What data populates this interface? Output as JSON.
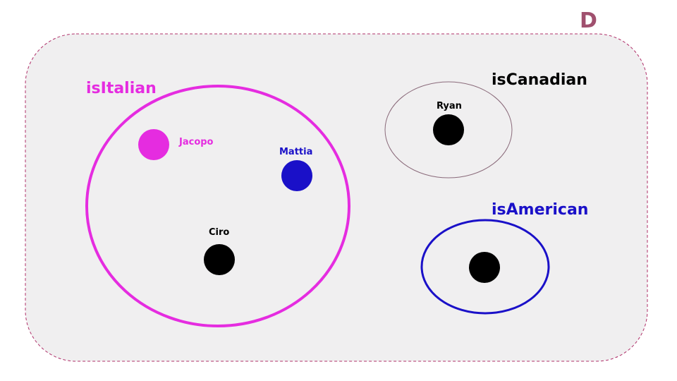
{
  "domain": {
    "label": "D",
    "color": "#a0506e"
  },
  "sets": [
    {
      "id": "italian",
      "label": "isItalian",
      "color": "#e52ce0"
    },
    {
      "id": "canadian",
      "label": "isCanadian",
      "color": "#000000",
      "border_color": "#8a6a7a"
    },
    {
      "id": "american",
      "label": "isAmerican",
      "color": "#1a10c8"
    }
  ],
  "elements": [
    {
      "id": "jacopo",
      "label": "Jacopo",
      "color": "#e52ce0",
      "label_color": "#e52ce0",
      "set": "isItalian"
    },
    {
      "id": "mattia",
      "label": "Mattia",
      "color": "#1a10c8",
      "label_color": "#1a10c8",
      "set": "isItalian"
    },
    {
      "id": "ciro",
      "label": "Ciro",
      "color": "#000000",
      "label_color": "#000000",
      "set": "isItalian"
    },
    {
      "id": "ryan",
      "label": "Ryan",
      "color": "#000000",
      "label_color": "#000000",
      "set": "isCanadian"
    },
    {
      "id": "american-person",
      "label": "",
      "color": "#000000",
      "label_color": "#000000",
      "set": "isAmerican"
    }
  ]
}
